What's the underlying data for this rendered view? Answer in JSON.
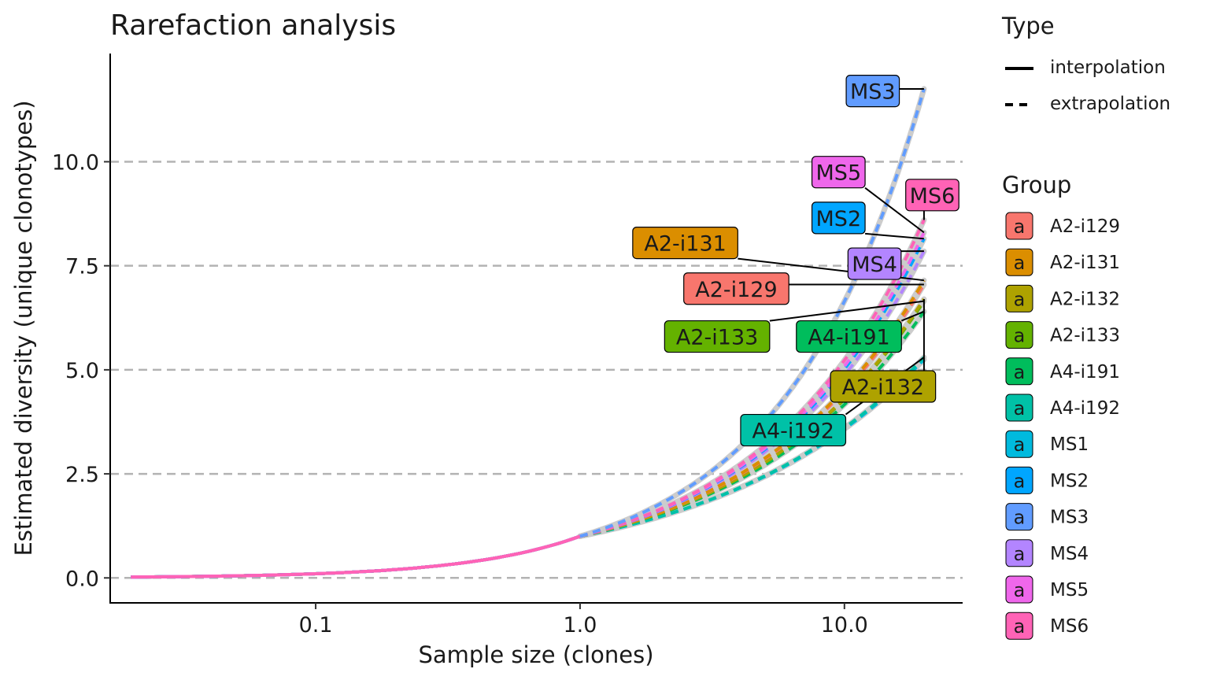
{
  "chart_data": {
    "type": "line",
    "title": "Rarefaction analysis",
    "xlabel": "Sample size (clones)",
    "ylabel": "Estimated diversity (unique clonotypes)",
    "x_scale": "log10",
    "xlim": [
      0.0167,
      28
    ],
    "ylim": [
      -0.6,
      12.6
    ],
    "x_ticks": [
      0.1,
      1.0,
      10.0
    ],
    "x_tick_labels": [
      "0.1",
      "1.0",
      "10.0"
    ],
    "y_ticks": [
      0.0,
      2.5,
      5.0,
      7.5,
      10.0
    ],
    "y_tick_labels": [
      "0.0",
      "2.5",
      "5.0",
      "7.5",
      "10.0"
    ],
    "grid": "horizontal dashed",
    "interpolation_range": [
      0.02,
      1.0
    ],
    "extrapolation_range": [
      1.0,
      20.0
    ],
    "legend_type": {
      "title": "Type",
      "entries": [
        {
          "label": "interpolation",
          "style": "solid"
        },
        {
          "label": "extrapolation",
          "style": "dashed"
        }
      ]
    },
    "legend_group": {
      "title": "Group",
      "key_glyph": "a"
    },
    "series": [
      {
        "name": "A2-i129",
        "color": "#F8766D",
        "endpoint": [
          20,
          7.05
        ],
        "label_pos": [
          3.9,
          6.95
        ]
      },
      {
        "name": "A2-i131",
        "color": "#DB8E00",
        "endpoint": [
          20,
          7.15
        ],
        "label_pos": [
          2.5,
          8.05
        ]
      },
      {
        "name": "A2-i132",
        "color": "#AEA200",
        "endpoint": [
          20,
          6.7
        ],
        "label_pos": [
          14,
          4.6
        ]
      },
      {
        "name": "A2-i133",
        "color": "#64B200",
        "endpoint": [
          20,
          6.65
        ],
        "label_pos": [
          3.3,
          5.8
        ]
      },
      {
        "name": "A4-i191",
        "color": "#00BD5C",
        "endpoint": [
          20,
          6.4
        ],
        "label_pos": [
          10.4,
          5.8
        ]
      },
      {
        "name": "A4-i192",
        "color": "#00C1A7",
        "endpoint": [
          20,
          5.3
        ],
        "label_pos": [
          6.4,
          3.55
        ]
      },
      {
        "name": "MS1",
        "color": "#00BADE",
        "endpoint": [
          20,
          5.25
        ],
        "label_pos": null
      },
      {
        "name": "MS2",
        "color": "#00A6FF",
        "endpoint": [
          20,
          8.15
        ],
        "label_pos": [
          9.5,
          8.65
        ]
      },
      {
        "name": "MS3",
        "color": "#619CFF",
        "endpoint": [
          20,
          11.75
        ],
        "label_pos": [
          12.8,
          11.7
        ]
      },
      {
        "name": "MS4",
        "color": "#B385FF",
        "endpoint": [
          20,
          7.85
        ],
        "label_pos": [
          13,
          7.55
        ]
      },
      {
        "name": "MS5",
        "color": "#EF67EB",
        "endpoint": [
          20,
          8.3
        ],
        "label_pos": [
          9.5,
          9.75
        ]
      },
      {
        "name": "MS6",
        "color": "#FF63B6",
        "endpoint": [
          20,
          8.6
        ],
        "label_pos": [
          21.5,
          9.2
        ]
      }
    ]
  }
}
